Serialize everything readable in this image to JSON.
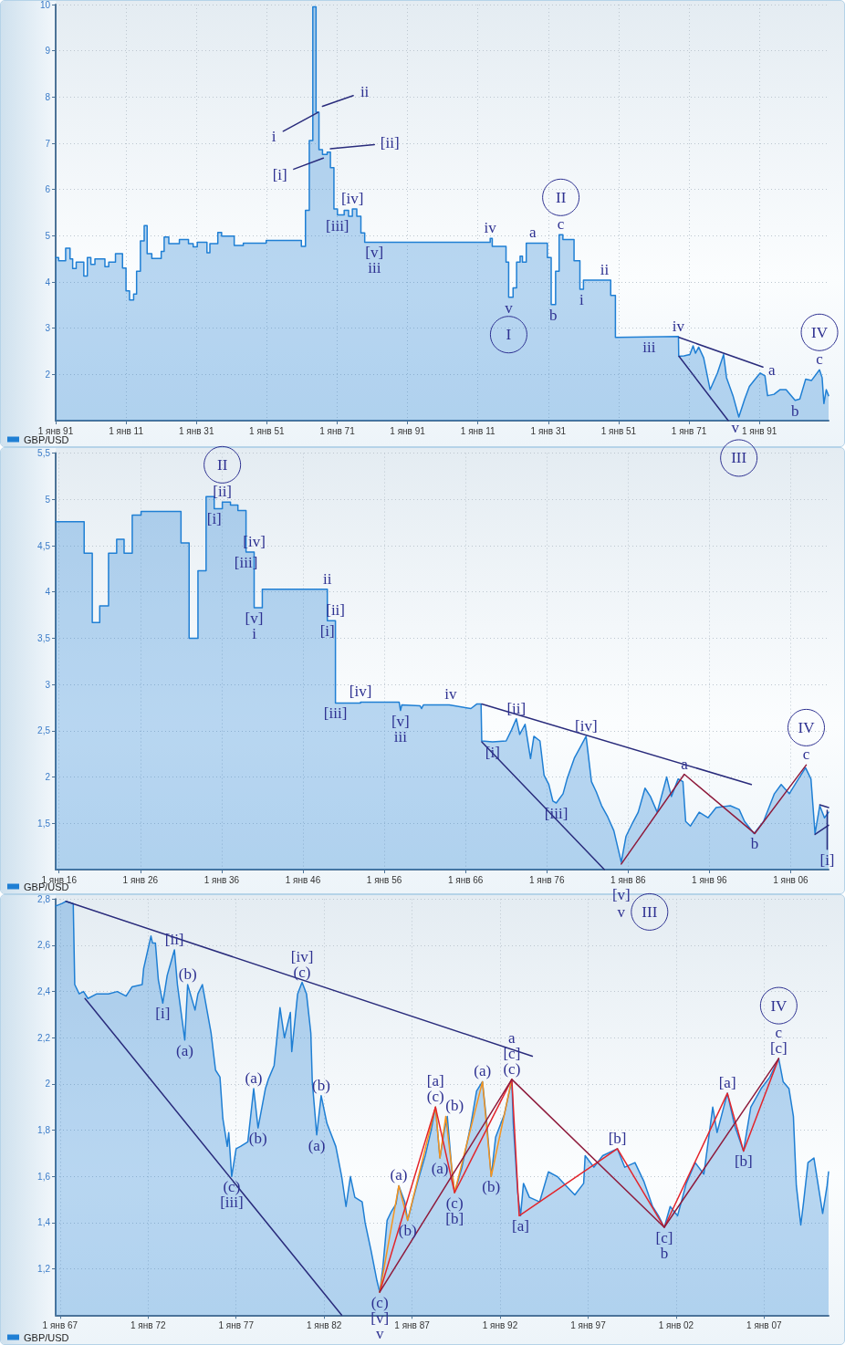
{
  "chart_data": [
    {
      "type": "area",
      "x": [
        "1791",
        "1791-11",
        "1791-11",
        "1793-11",
        "1793-11",
        "1795-02",
        "1795-02",
        "1795-11",
        "1795-11",
        "1796-11",
        "1796-11",
        "1799-01",
        "1799-01",
        "1800-01",
        "1800-01",
        "1801-01",
        "1801-01",
        "1802-03",
        "1802-03",
        "1805-01",
        "1805-01",
        "1806-02",
        "1806-02",
        "1808-01",
        "1808-01",
        "1810-01",
        "1810-01",
        "1811-01",
        "1811-01",
        "1812-01",
        "1812-01",
        "1813-03",
        "1813-03",
        "1814-01",
        "1814-01",
        "1815-02",
        "1815-02",
        "1816-03",
        "1816-03",
        "1817-01",
        "1817-01",
        "1818-05",
        "1818-05",
        "1821-01",
        "1821-01",
        "1821-11",
        "1821-11",
        "1823-03",
        "1823-03",
        "1826-03",
        "1826-03",
        "1828-10",
        "1828-10",
        "1830-02",
        "1830-02",
        "1831-04",
        "1831-04",
        "1834-01",
        "1834-01",
        "1834-11",
        "1834-11",
        "1837-02",
        "1837-02",
        "1838-03",
        "1838-03",
        "1841-10",
        "1841-10",
        "1844-05",
        "1844-05",
        "1850-11",
        "1850-11",
        "1860-11",
        "1860-11",
        "1862-01",
        "1862-01",
        "1863-02",
        "1863-02",
        "1864-02",
        "1864-02",
        "1865-01",
        "1865-01",
        "1865-11",
        "1865-11",
        "1866-11",
        "1866-11",
        "1868-03",
        "1868-03",
        "1869-02",
        "1869-02",
        "1870-02",
        "1870-02",
        "1871-02",
        "1871-02",
        "1873-01",
        "1873-01",
        "1874-04",
        "1874-04",
        "1875-05",
        "1875-05",
        "1876-08",
        "1876-08",
        "1877-10",
        "1877-10",
        "1878-11",
        "1878-11",
        "1914-07",
        "1914-07",
        "1915-02",
        "1915-02",
        "1919-01",
        "1919-01",
        "1919-10",
        "1919-10",
        "1921-01",
        "1921-01",
        "1922-01",
        "1922-01",
        "1923-01",
        "1923-01",
        "1923-09",
        "1923-09",
        "1924-10",
        "1924-10",
        "1930-10",
        "1930-10",
        "1931-11",
        "1931-11",
        "1933-02",
        "1933-02",
        "1934-02",
        "1934-02",
        "1935-03",
        "1935-03",
        "1938-05",
        "1938-05",
        "1940-01",
        "1940-01",
        "1941-01",
        "1941-01",
        "1948-10",
        "1948-10",
        "1950-02",
        "1950-02",
        "1968-01",
        "1968-02",
        "1969-08",
        "1971-04",
        "1972-03",
        "1972-11",
        "1973-10",
        "1975-03",
        "1977-01",
        "1977-10",
        "1979-02",
        "1980-11",
        "1981-09",
        "1983-07",
        "1985-03",
        "1986-11",
        "1988-03",
        "1989-07",
        "1991-04",
        "1992-08",
        "1993-05",
        "1995-03",
        "1996-11",
        "1998-08",
        "2001-03",
        "2002-07",
        "2004-03",
        "2005-11",
        "2008-02",
        "2008-11",
        "2009-05",
        "2010-01",
        "2010-09"
      ],
      "series": [
        {
          "name": "GBP/USD",
          "color": "#1f7fd4",
          "values": [
            4.53,
            4.53,
            4.46,
            4.46,
            4.73,
            4.73,
            4.5,
            4.5,
            4.29,
            4.29,
            4.43,
            4.43,
            4.13,
            4.13,
            4.53,
            4.53,
            4.38,
            4.38,
            4.5,
            4.5,
            4.33,
            4.33,
            4.43,
            4.43,
            4.61,
            4.61,
            4.3,
            4.3,
            3.81,
            3.81,
            3.61,
            3.61,
            3.74,
            3.74,
            4.23,
            4.23,
            4.89,
            4.89,
            5.22,
            5.22,
            4.61,
            4.61,
            4.51,
            4.51,
            4.66,
            4.66,
            4.97,
            4.97,
            4.83,
            4.83,
            4.92,
            4.92,
            4.83,
            4.83,
            4.76,
            4.76,
            4.86,
            4.86,
            4.63,
            4.63,
            4.83,
            4.83,
            5.07,
            5.07,
            4.99,
            4.99,
            4.79,
            4.79,
            4.84,
            4.84,
            4.9,
            4.9,
            4.77,
            4.77,
            5.55,
            5.55,
            7.06,
            7.06,
            9.95,
            9.95,
            7.67,
            7.67,
            6.86,
            6.86,
            6.76,
            6.76,
            6.81,
            6.81,
            6.47,
            6.47,
            5.58,
            5.58,
            5.45,
            5.45,
            5.55,
            5.55,
            5.42,
            5.42,
            5.58,
            5.58,
            5.42,
            5.42,
            5.06,
            5.06,
            4.86,
            4.86,
            4.94,
            4.94,
            4.77,
            4.77,
            4.43,
            4.43,
            3.67,
            3.67,
            3.87,
            3.87,
            4.43,
            4.43,
            4.56,
            4.56,
            4.43,
            4.43,
            4.84,
            4.84,
            4.53,
            4.53,
            3.51,
            3.51,
            4.23,
            4.23,
            5.02,
            5.02,
            4.92,
            4.92,
            4.46,
            4.46,
            3.84,
            3.84,
            4.04,
            4.04,
            3.71,
            3.71,
            2.8,
            2.82,
            2.39,
            2.4,
            2.43,
            2.62,
            2.46,
            2.59,
            2.36,
            1.67,
            1.8,
            2.03,
            2.43,
            1.93,
            1.54,
            1.08,
            1.47,
            1.74,
            1.87,
            2.03,
            1.97,
            1.54,
            1.57,
            1.67,
            1.67,
            1.44,
            1.47,
            1.9,
            1.87,
            2.1,
            1.93,
            1.37,
            1.67,
            1.54
          ]
        },
        {
          "type": "line",
          "color": "#2a2c7c",
          "x": [
            "1968-03",
            "1992-01"
          ],
          "values": [
            2.8,
            2.16
          ]
        },
        {
          "type": "line",
          "color": "#2a2c7c",
          "x": [
            "1968-03",
            "1982-03"
          ],
          "values": [
            2.39,
            1.0
          ]
        },
        {
          "type": "line",
          "color": "#2a2c7c",
          "x": [
            "1855-09",
            "1865-08"
          ],
          "values": [
            7.26,
            7.67
          ]
        },
        {
          "type": "line",
          "color": "#2a2c7c",
          "x": [
            "1866-11",
            "1875-08"
          ],
          "values": [
            7.8,
            8.03
          ]
        },
        {
          "type": "line",
          "color": "#2a2c7c",
          "x": [
            "1858-09",
            "1867-02"
          ],
          "values": [
            6.44,
            6.68
          ]
        },
        {
          "type": "line",
          "color": "#2a2c7c",
          "x": [
            "1869-02",
            "1881-08"
          ],
          "values": [
            6.88,
            6.97
          ]
        }
      ],
      "xlim": [
        "1791",
        "2010-09"
      ],
      "xticks": [
        {
          "value": "1791",
          "label": "1 янв 91"
        },
        {
          "value": "1811",
          "label": "1 янв 11"
        },
        {
          "value": "1831",
          "label": "1 янв 31"
        },
        {
          "value": "1851",
          "label": "1 янв 51"
        },
        {
          "value": "1871",
          "label": "1 янв 71"
        },
        {
          "value": "1891",
          "label": "1 янв 91"
        },
        {
          "value": "1911",
          "label": "1 янв 11"
        },
        {
          "value": "1931",
          "label": "1 янв 31"
        },
        {
          "value": "1951",
          "label": "1 янв 51"
        },
        {
          "value": "1971",
          "label": "1 янв 71"
        },
        {
          "value": "1991",
          "label": "1 янв 91"
        }
      ],
      "ylim": [
        1,
        10
      ],
      "yticks": [
        2,
        3,
        4,
        5,
        6,
        7,
        8,
        9,
        10
      ],
      "grid": true,
      "legend": "bottom left",
      "annotations": [
        {
          "text": "i",
          "x": "1855-09",
          "y": 7.26
        },
        {
          "text": "ii",
          "x": "1875-08",
          "y": 8.03
        },
        {
          "text": "[i]",
          "x": "1858-09",
          "y": 6.44
        },
        {
          "text": "[ii]",
          "x": "1881-08",
          "y": 6.97
        },
        {
          "text": "[iv]",
          "x": "1875-05",
          "y": 5.58
        },
        {
          "text": "[iii]",
          "x": "1871-02",
          "y": 5.45
        },
        {
          "text": "[v]",
          "x": "1881-08",
          "y": 4.86
        },
        {
          "text": "iii",
          "x": "1881-08",
          "y": 4.86
        },
        {
          "text": "iv",
          "x": "1914-07",
          "y": 4.94
        },
        {
          "text": "a",
          "x": "1926-08",
          "y": 4.84
        },
        {
          "text": "c",
          "x": "1934-08",
          "y": 5.02
        },
        {
          "text": "II",
          "x": "1934-08",
          "y": 5.02
        },
        {
          "text": "v",
          "x": "1919-10",
          "y": 3.67
        },
        {
          "text": "I",
          "x": "1919-10",
          "y": 3.67
        },
        {
          "text": "b",
          "x": "1932-06",
          "y": 3.51
        },
        {
          "text": "i",
          "x": "1940-07",
          "y": 3.84
        },
        {
          "text": "ii",
          "x": "1947-01",
          "y": 4.04
        },
        {
          "text": "iv",
          "x": "1968-01",
          "y": 2.82
        },
        {
          "text": "iii",
          "x": "1959-09",
          "y": 2.81
        },
        {
          "text": "a",
          "x": "1992-01",
          "y": 2.16
        },
        {
          "text": "c",
          "x": "2008-02",
          "y": 2.1
        },
        {
          "text": "IV",
          "x": "2008-02",
          "y": 2.1
        },
        {
          "text": "b",
          "x": "2001-03",
          "y": 1.44
        },
        {
          "text": "v",
          "x": "1985-03",
          "y": 1.08
        },
        {
          "text": "III",
          "x": "1985-03",
          "y": 1.08
        }
      ]
    },
    {
      "type": "area",
      "x": [
        "1915-08",
        "1919-02",
        "1919-02",
        "1920-02",
        "1920-02",
        "1921-01",
        "1921-01",
        "1922-02",
        "1922-02",
        "1923-02",
        "1923-02",
        "1924-01",
        "1924-01",
        "1925-01",
        "1925-01",
        "1926-02",
        "1926-02",
        "1931-01",
        "1931-01",
        "1932-01",
        "1932-01",
        "1933-02",
        "1933-02",
        "1934-02",
        "1934-02",
        "1935-02",
        "1935-02",
        "1936-02",
        "1936-02",
        "1937-02",
        "1937-02",
        "1938-01",
        "1938-01",
        "1939-01",
        "1939-01",
        "1940-01",
        "1940-01",
        "1941-01",
        "1941-01",
        "1949-01",
        "1949-01",
        "1950-01",
        "1950-01",
        "1953-02",
        "1953-02",
        "1957-11",
        "1958-01",
        "1958-03",
        "1960-06",
        "1960-08",
        "1960-11",
        "1964-01",
        "1966-09",
        "1967-06",
        "1967-12",
        "1968-01",
        "1969-05",
        "1971-01",
        "1971-09",
        "1972-04",
        "1972-09",
        "1973-05",
        "1974-01",
        "1974-06",
        "1975-03",
        "1975-09",
        "1976-04",
        "1976-10",
        "1977-03",
        "1978-01",
        "1978-07",
        "1979-06",
        "1980-03",
        "1980-11",
        "1981-07",
        "1982-02",
        "1982-10",
        "1983-07",
        "1984-04",
        "1985-03",
        "1985-10",
        "1986-08",
        "1987-04",
        "1988-02",
        "1988-10",
        "1989-08",
        "1990-10",
        "1991-05",
        "1992-03",
        "1992-10",
        "1993-02",
        "1993-09",
        "1994-10",
        "1995-11",
        "1996-11",
        "1998-08",
        "1999-09",
        "2000-05",
        "2001-07",
        "2002-09",
        "2004-01",
        "2004-11",
        "2005-11",
        "2006-10",
        "2007-11",
        "2008-07",
        "2009-01",
        "2009-08",
        "2010-03",
        "2010-09"
      ],
      "series": [
        {
          "name": "GBP/USD",
          "color": "#1f7fd4",
          "values": [
            4.76,
            4.76,
            4.42,
            4.42,
            3.67,
            3.67,
            3.85,
            3.85,
            4.42,
            4.42,
            4.57,
            4.57,
            4.42,
            4.42,
            4.83,
            4.83,
            4.87,
            4.87,
            4.53,
            4.53,
            3.5,
            3.5,
            4.23,
            4.23,
            5.03,
            5.03,
            4.9,
            4.9,
            4.97,
            4.97,
            4.94,
            4.94,
            4.88,
            4.88,
            4.43,
            4.43,
            3.83,
            3.83,
            4.03,
            4.03,
            3.69,
            3.69,
            2.8,
            2.8,
            2.81,
            2.81,
            2.72,
            2.78,
            2.77,
            2.74,
            2.78,
            2.78,
            2.74,
            2.79,
            2.79,
            2.39,
            2.38,
            2.39,
            2.51,
            2.63,
            2.46,
            2.57,
            2.2,
            2.44,
            2.39,
            2.02,
            1.92,
            1.74,
            1.72,
            1.82,
            1.98,
            2.21,
            2.33,
            2.44,
            1.95,
            1.84,
            1.69,
            1.57,
            1.42,
            1.08,
            1.36,
            1.51,
            1.62,
            1.88,
            1.79,
            1.62,
            2.0,
            1.79,
            1.98,
            1.95,
            1.52,
            1.47,
            1.62,
            1.56,
            1.67,
            1.69,
            1.65,
            1.52,
            1.39,
            1.52,
            1.82,
            1.92,
            1.82,
            1.95,
            2.1,
            1.98,
            1.39,
            1.69,
            1.56,
            1.62
          ]
        },
        {
          "type": "line",
          "color": "#2a2c7c",
          "x": [
            "1968-01",
            "2001-03"
          ],
          "values": [
            2.79,
            1.92
          ]
        },
        {
          "type": "line",
          "color": "#2a2c7c",
          "x": [
            "1968-01",
            "1983-02"
          ],
          "values": [
            2.38,
            1.0
          ]
        },
        {
          "type": "line",
          "color": "#8e1b3c",
          "x": [
            "1985-03",
            "1992-12",
            "2001-08",
            "2007-12"
          ],
          "values": [
            1.06,
            2.03,
            1.39,
            2.13
          ]
        },
        {
          "type": "line",
          "color": "#2a2c7c",
          "x": [
            "2009-01",
            "2010-09"
          ],
          "values": [
            1.38,
            1.48
          ]
        },
        {
          "type": "line",
          "color": "#2a2c7c",
          "x": [
            "2009-08",
            "2010-09"
          ],
          "values": [
            1.7,
            1.67
          ]
        },
        {
          "type": "line",
          "color": "#2a2c7c",
          "x": [
            "2010-07",
            "2010-07"
          ],
          "values": [
            1.64,
            1.22
          ]
        }
      ],
      "xlim": [
        "1915-08",
        "2010-09"
      ],
      "xticks": [
        {
          "value": "1916",
          "label": "1 янв 16"
        },
        {
          "value": "1926",
          "label": "1 янв 26"
        },
        {
          "value": "1936",
          "label": "1 янв 36"
        },
        {
          "value": "1946",
          "label": "1 янв 46"
        },
        {
          "value": "1956",
          "label": "1 янв 56"
        },
        {
          "value": "1966",
          "label": "1 янв 66"
        },
        {
          "value": "1976",
          "label": "1 янв 76"
        },
        {
          "value": "1986",
          "label": "1 янв 86"
        },
        {
          "value": "1996",
          "label": "1 янв 96"
        },
        {
          "value": "2006",
          "label": "1 янв 06"
        }
      ],
      "ylim": [
        1,
        5.5
      ],
      "yticks": [
        {
          "value": 1.5,
          "label": "1,5"
        },
        2,
        {
          "value": 2.5,
          "label": "2,5"
        },
        3,
        {
          "value": 3.5,
          "label": "3,5"
        },
        4,
        {
          "value": 4.5,
          "label": "4,5"
        },
        5,
        {
          "value": 5.5,
          "label": "5,5"
        }
      ],
      "grid": true,
      "legend": "bottom left",
      "annotations": [
        {
          "text": "[ii]",
          "x": "1936-02",
          "y": 4.97
        },
        {
          "text": "II",
          "x": "1936-02",
          "y": 4.97
        },
        {
          "text": "[i]",
          "x": "1935-02",
          "y": 4.9
        },
        {
          "text": "[iii]",
          "x": "1939-01",
          "y": 4.43
        },
        {
          "text": "[iv]",
          "x": "1940-01",
          "y": 4.43
        },
        {
          "text": "[v]",
          "x": "1940-01",
          "y": 3.83
        },
        {
          "text": "i",
          "x": "1940-01",
          "y": 3.83
        },
        {
          "text": "ii",
          "x": "1949-01",
          "y": 4.03
        },
        {
          "text": "[i]",
          "x": "1949-01",
          "y": 3.69
        },
        {
          "text": "[ii]",
          "x": "1950-01",
          "y": 3.69
        },
        {
          "text": "[iii]",
          "x": "1950-01",
          "y": 2.8
        },
        {
          "text": "[iv]",
          "x": "1953-02",
          "y": 2.81
        },
        {
          "text": "[v]",
          "x": "1958-01",
          "y": 2.72
        },
        {
          "text": "iii",
          "x": "1958-01",
          "y": 2.72
        },
        {
          "text": "iv",
          "x": "1964-03",
          "y": 2.78
        },
        {
          "text": "[ii]",
          "x": "1972-04",
          "y": 2.63
        },
        {
          "text": "[iv]",
          "x": "1980-11",
          "y": 2.44
        },
        {
          "text": "[i]",
          "x": "1969-05",
          "y": 2.38
        },
        {
          "text": "[iii]",
          "x": "1977-03",
          "y": 1.72
        },
        {
          "text": "a",
          "x": "1992-12",
          "y": 2.03
        },
        {
          "text": "c",
          "x": "2007-12",
          "y": 2.13
        },
        {
          "text": "IV",
          "x": "2007-12",
          "y": 2.13
        },
        {
          "text": "b",
          "x": "2001-08",
          "y": 1.39
        },
        {
          "text": "[v]",
          "x": "1985-03",
          "y": 1.08
        },
        {
          "text": "v",
          "x": "1985-03",
          "y": 1.08
        },
        {
          "text": "III",
          "x": "1985-03",
          "y": 1.08
        },
        {
          "text": "[i]",
          "x": "2010-07",
          "y": 1.22
        }
      ]
    },
    {
      "type": "area",
      "x": [
        "1966-10",
        "1967-02",
        "1967-05",
        "1967-10",
        "1967-11",
        "1968-02",
        "1968-05",
        "1968-08",
        "1969-02",
        "1969-10",
        "1970-04",
        "1970-10",
        "1971-02",
        "1971-09",
        "1971-10",
        "1972-03",
        "1972-04",
        "1972-06",
        "1972-08",
        "1972-11",
        "1973-02",
        "1973-07",
        "1973-09",
        "1974-02",
        "1974-04",
        "1974-09",
        "1974-11",
        "1975-02",
        "1975-08",
        "1975-11",
        "1976-02",
        "1976-04",
        "1976-07",
        "1976-08",
        "1976-10",
        "1977-01",
        "1977-04",
        "1977-09",
        "1978-01",
        "1978-04",
        "1978-09",
        "1978-11",
        "1979-03",
        "1979-07",
        "1979-10",
        "1980-02",
        "1980-03",
        "1980-07",
        "1980-10",
        "1981-01",
        "1981-04",
        "1981-05",
        "1981-08",
        "1981-11",
        "1982-03",
        "1982-09",
        "1983-01",
        "1983-04",
        "1983-07",
        "1983-10",
        "1984-03",
        "1984-05",
        "1984-09",
        "1985-01",
        "1985-03",
        "1985-05",
        "1985-08",
        "1985-11",
        "1986-02",
        "1986-04",
        "1986-08",
        "1986-10",
        "1987-02",
        "1987-05",
        "1987-10",
        "1988-02",
        "1988-05",
        "1988-08",
        "1988-11",
        "1989-01",
        "1989-04",
        "1989-06",
        "1989-11",
        "1990-05",
        "1990-09",
        "1991-01",
        "1991-04",
        "1991-07",
        "1991-10",
        "1992-04",
        "1992-09",
        "1992-10",
        "1993-01",
        "1993-03",
        "1993-05",
        "1993-09",
        "1994-04",
        "1994-10",
        "1995-04",
        "1995-10",
        "1996-04",
        "1996-10",
        "1996-11",
        "1997-05",
        "1997-11",
        "1998-09",
        "1999-02",
        "1999-09",
        "2000-03",
        "2000-09",
        "2001-01",
        "2001-05",
        "2001-09",
        "2002-02",
        "2002-08",
        "2003-02",
        "2003-08",
        "2004-02",
        "2004-05",
        "2004-12",
        "2005-05",
        "2005-11",
        "2006-04",
        "2006-11",
        "2007-05",
        "2007-11",
        "2008-02",
        "2008-06",
        "2008-09",
        "2008-11",
        "2009-02",
        "2009-04",
        "2009-07",
        "2009-11",
        "2010-05",
        "2010-08",
        "2010-09"
      ],
      "series": [
        {
          "name": "GBP/USD",
          "color": "#1f7fd4",
          "values": [
            2.77,
            2.78,
            2.79,
            2.78,
            2.43,
            2.39,
            2.4,
            2.37,
            2.39,
            2.39,
            2.4,
            2.38,
            2.42,
            2.43,
            2.5,
            2.64,
            2.61,
            2.61,
            2.45,
            2.35,
            2.47,
            2.58,
            2.43,
            2.19,
            2.43,
            2.32,
            2.39,
            2.43,
            2.22,
            2.06,
            2.03,
            1.85,
            1.73,
            1.79,
            1.6,
            1.72,
            1.73,
            1.75,
            1.98,
            1.81,
            1.98,
            2.02,
            2.08,
            2.33,
            2.2,
            2.31,
            2.14,
            2.39,
            2.44,
            2.39,
            2.22,
            2.01,
            1.78,
            1.95,
            1.83,
            1.73,
            1.6,
            1.47,
            1.6,
            1.51,
            1.49,
            1.4,
            1.28,
            1.15,
            1.1,
            1.2,
            1.41,
            1.45,
            1.48,
            1.56,
            1.49,
            1.41,
            1.51,
            1.58,
            1.69,
            1.8,
            1.9,
            1.68,
            1.8,
            1.86,
            1.64,
            1.53,
            1.64,
            1.82,
            1.97,
            2.01,
            1.83,
            1.6,
            1.77,
            1.87,
            2.02,
            1.83,
            1.53,
            1.43,
            1.57,
            1.51,
            1.49,
            1.62,
            1.6,
            1.56,
            1.52,
            1.57,
            1.69,
            1.64,
            1.69,
            1.72,
            1.64,
            1.66,
            1.58,
            1.47,
            1.43,
            1.38,
            1.47,
            1.43,
            1.57,
            1.66,
            1.61,
            1.9,
            1.79,
            1.96,
            1.82,
            1.71,
            1.9,
            1.98,
            2.03,
            2.11,
            2.01,
            1.98,
            1.86,
            1.56,
            1.39,
            1.49,
            1.66,
            1.68,
            1.44,
            1.56,
            1.62
          ]
        },
        {
          "type": "line",
          "color": "#2a2c7c",
          "x": [
            "1967-05",
            "1993-11"
          ],
          "values": [
            2.79,
            2.12
          ]
        },
        {
          "type": "line",
          "color": "#2a2c7c",
          "x": [
            "1968-06",
            "1983-01"
          ],
          "values": [
            2.37,
            1.0
          ]
        },
        {
          "type": "line",
          "color": "#f7941d",
          "x": [
            "1985-03",
            "1986-04",
            "1986-10",
            "1988-05",
            "1988-08",
            "1988-12",
            "1989-06",
            "1991-01",
            "1991-07",
            "1992-09"
          ],
          "values": [
            1.1,
            1.56,
            1.41,
            1.9,
            1.68,
            1.86,
            1.53,
            2.01,
            1.6,
            2.02
          ]
        },
        {
          "type": "line",
          "color": "#e3242b",
          "x": [
            "1985-03",
            "1988-05",
            "1989-06",
            "1992-09",
            "1993-02",
            "1998-09",
            "2001-05",
            "2004-12",
            "2005-11",
            "2007-11"
          ],
          "values": [
            1.1,
            1.9,
            1.53,
            2.02,
            1.43,
            1.72,
            1.38,
            1.96,
            1.71,
            2.11
          ]
        },
        {
          "type": "line",
          "color": "#8e1b3c",
          "x": [
            "1985-03",
            "1992-09",
            "2001-05",
            "2007-11"
          ],
          "values": [
            1.1,
            2.02,
            1.38,
            2.11
          ]
        }
      ],
      "xlim": [
        "1966-10",
        "2010-09"
      ],
      "xticks": [
        {
          "value": "1967",
          "label": "1 янв 67"
        },
        {
          "value": "1972",
          "label": "1 янв 72"
        },
        {
          "value": "1977",
          "label": "1 янв 77"
        },
        {
          "value": "1982",
          "label": "1 янв 82"
        },
        {
          "value": "1987",
          "label": "1 янв 87"
        },
        {
          "value": "1992",
          "label": "1 янв 92"
        },
        {
          "value": "1997",
          "label": "1 янв 97"
        },
        {
          "value": "2002",
          "label": "1 янв 02"
        },
        {
          "value": "2007",
          "label": "1 янв 07"
        }
      ],
      "ylim": [
        1,
        2.8
      ],
      "yticks": [
        {
          "value": 1.2,
          "label": "1,2"
        },
        {
          "value": 1.4,
          "label": "1,4"
        },
        {
          "value": 1.6,
          "label": "1,6"
        },
        {
          "value": 1.8,
          "label": "1,8"
        },
        2,
        {
          "value": 2.2,
          "label": "2,2"
        },
        {
          "value": 2.4,
          "label": "2,4"
        },
        {
          "value": 2.6,
          "label": "2,6"
        },
        {
          "value": 2.8,
          "label": "2,8"
        }
      ],
      "grid": true,
      "legend": "bottom left",
      "annotations": [
        {
          "text": "[ii]",
          "x": "1973-07",
          "y": 2.58
        },
        {
          "text": "[i]",
          "x": "1972-11",
          "y": 2.35
        },
        {
          "text": "(b)",
          "x": "1974-04",
          "y": 2.43
        },
        {
          "text": "(a)",
          "x": "1974-02",
          "y": 2.19
        },
        {
          "text": "(a)",
          "x": "1978-01",
          "y": 1.98
        },
        {
          "text": "(b)",
          "x": "1978-04",
          "y": 1.81
        },
        {
          "text": "(c)",
          "x": "1976-10",
          "y": 1.6
        },
        {
          "text": "[iii]",
          "x": "1976-10",
          "y": 1.6
        },
        {
          "text": "(c)",
          "x": "1980-10",
          "y": 2.44
        },
        {
          "text": "[iv]",
          "x": "1980-10",
          "y": 2.44
        },
        {
          "text": "(b)",
          "x": "1981-11",
          "y": 1.95
        },
        {
          "text": "(a)",
          "x": "1981-08",
          "y": 1.78
        },
        {
          "text": "(c)",
          "x": "1985-03",
          "y": 1.1
        },
        {
          "text": "[v]",
          "x": "1985-03",
          "y": 1.1
        },
        {
          "text": "v",
          "x": "1985-03",
          "y": 1.1
        },
        {
          "text": "(a)",
          "x": "1986-04",
          "y": 1.56
        },
        {
          "text": "(b)",
          "x": "1986-10",
          "y": 1.41
        },
        {
          "text": "(c)",
          "x": "1988-05",
          "y": 1.9
        },
        {
          "text": "[a]",
          "x": "1988-05",
          "y": 1.9
        },
        {
          "text": "(a)",
          "x": "1988-08",
          "y": 1.68
        },
        {
          "text": "(b)",
          "x": "1989-01",
          "y": 1.86
        },
        {
          "text": "(c)",
          "x": "1989-06",
          "y": 1.53
        },
        {
          "text": "[b]",
          "x": "1989-06",
          "y": 1.53
        },
        {
          "text": "(a)",
          "x": "1991-01",
          "y": 2.01
        },
        {
          "text": "(b)",
          "x": "1991-07",
          "y": 1.6
        },
        {
          "text": "(c)",
          "x": "1992-09",
          "y": 2.02
        },
        {
          "text": "[c]",
          "x": "1992-09",
          "y": 2.02
        },
        {
          "text": "a",
          "x": "1992-09",
          "y": 2.02
        },
        {
          "text": "[a]",
          "x": "1993-03",
          "y": 1.43
        },
        {
          "text": "[b]",
          "x": "1998-09",
          "y": 1.72
        },
        {
          "text": "[c]",
          "x": "2001-05",
          "y": 1.38
        },
        {
          "text": "b",
          "x": "2001-05",
          "y": 1.38
        },
        {
          "text": "[a]",
          "x": "2004-12",
          "y": 1.96
        },
        {
          "text": "[b]",
          "x": "2005-11",
          "y": 1.71
        },
        {
          "text": "[c]",
          "x": "2007-11",
          "y": 2.11
        },
        {
          "text": "c",
          "x": "2007-11",
          "y": 2.11
        },
        {
          "text": "IV",
          "x": "2007-11",
          "y": 2.11
        }
      ]
    }
  ]
}
